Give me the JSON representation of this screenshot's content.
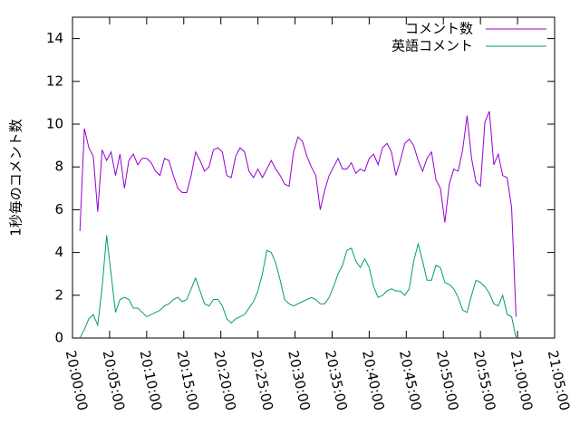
{
  "chart_data": {
    "type": "line",
    "ylabel": "1秒毎のコメント数",
    "xlim": [
      "20:00:00",
      "21:05:00"
    ],
    "xticks": [
      "20:00:00",
      "20:05:00",
      "20:10:00",
      "20:15:00",
      "20:20:00",
      "20:25:00",
      "20:30:00",
      "20:35:00",
      "20:40:00",
      "20:45:00",
      "20:50:00",
      "20:55:00",
      "21:00:00",
      "21:05:00"
    ],
    "ylim": [
      0,
      15
    ],
    "yticks": [
      0,
      2,
      4,
      6,
      8,
      10,
      12,
      14
    ],
    "grid": false,
    "legend": "top right",
    "x": [
      "20:01:00",
      "20:01:36",
      "20:02:12",
      "20:02:48",
      "20:03:24",
      "20:04:00",
      "20:04:36",
      "20:05:12",
      "20:05:48",
      "20:06:24",
      "20:07:00",
      "20:07:36",
      "20:08:12",
      "20:08:48",
      "20:09:24",
      "20:10:00",
      "20:10:36",
      "20:11:12",
      "20:11:48",
      "20:12:24",
      "20:13:00",
      "20:13:36",
      "20:14:12",
      "20:14:48",
      "20:15:24",
      "20:16:00",
      "20:16:36",
      "20:17:12",
      "20:17:48",
      "20:18:24",
      "20:19:00",
      "20:19:36",
      "20:20:12",
      "20:20:48",
      "20:21:24",
      "20:22:00",
      "20:22:36",
      "20:23:12",
      "20:23:48",
      "20:24:24",
      "20:25:00",
      "20:25:36",
      "20:26:12",
      "20:26:48",
      "20:27:24",
      "20:28:00",
      "20:28:36",
      "20:29:12",
      "20:29:48",
      "20:30:24",
      "20:31:00",
      "20:31:36",
      "20:32:12",
      "20:32:48",
      "20:33:24",
      "20:34:00",
      "20:34:36",
      "20:35:12",
      "20:35:48",
      "20:36:24",
      "20:37:00",
      "20:37:36",
      "20:38:12",
      "20:38:48",
      "20:39:24",
      "20:40:00",
      "20:40:36",
      "20:41:12",
      "20:41:48",
      "20:42:24",
      "20:43:00",
      "20:43:36",
      "20:44:12",
      "20:44:48",
      "20:45:24",
      "20:46:00",
      "20:46:36",
      "20:47:12",
      "20:47:48",
      "20:48:24",
      "20:49:00",
      "20:49:36",
      "20:50:12",
      "20:50:48",
      "20:51:24",
      "20:52:00",
      "20:52:36",
      "20:53:12",
      "20:53:48",
      "20:54:24",
      "20:55:00",
      "20:55:36",
      "20:56:12",
      "20:56:48",
      "20:57:24",
      "20:58:00",
      "20:58:36",
      "20:59:12",
      "20:59:48"
    ],
    "series": [
      {
        "name": "コメント数",
        "color": "#9400d3",
        "values": [
          5.0,
          9.8,
          8.9,
          8.5,
          5.9,
          8.8,
          8.3,
          8.7,
          7.6,
          8.6,
          7.0,
          8.3,
          8.6,
          8.1,
          8.4,
          8.4,
          8.2,
          7.8,
          7.6,
          8.4,
          8.3,
          7.6,
          7.0,
          6.8,
          6.8,
          7.6,
          8.7,
          8.3,
          7.8,
          8.0,
          8.8,
          8.9,
          8.7,
          7.6,
          7.5,
          8.5,
          8.9,
          8.7,
          7.8,
          7.5,
          7.9,
          7.5,
          7.9,
          8.3,
          7.9,
          7.6,
          7.2,
          7.1,
          8.7,
          9.4,
          9.2,
          8.5,
          8.0,
          7.6,
          6.0,
          6.9,
          7.6,
          8.0,
          8.4,
          7.9,
          7.9,
          8.2,
          7.7,
          7.9,
          7.8,
          8.4,
          8.6,
          8.1,
          8.9,
          9.1,
          8.7,
          7.6,
          8.3,
          9.1,
          9.3,
          9.0,
          8.3,
          7.8,
          8.4,
          8.7,
          7.4,
          7.0,
          5.4,
          7.2,
          7.9,
          7.8,
          8.8,
          10.4,
          8.4,
          7.3,
          7.1,
          10.1,
          10.6,
          8.1,
          8.6,
          7.6,
          7.5,
          6.1,
          1.0
        ]
      },
      {
        "name": "英語コメント",
        "color": "#009e73",
        "values": [
          0.0,
          0.4,
          0.9,
          1.1,
          0.6,
          2.4,
          4.8,
          3.0,
          1.2,
          1.8,
          1.9,
          1.8,
          1.4,
          1.4,
          1.2,
          1.0,
          1.1,
          1.2,
          1.3,
          1.5,
          1.6,
          1.8,
          1.9,
          1.7,
          1.8,
          2.3,
          2.8,
          2.2,
          1.6,
          1.5,
          1.8,
          1.8,
          1.5,
          0.9,
          0.7,
          0.9,
          1.0,
          1.1,
          1.4,
          1.7,
          2.2,
          3.0,
          4.1,
          4.0,
          3.5,
          2.7,
          1.8,
          1.6,
          1.5,
          1.6,
          1.7,
          1.8,
          1.9,
          1.8,
          1.6,
          1.6,
          1.9,
          2.4,
          3.0,
          3.4,
          4.1,
          4.2,
          3.6,
          3.3,
          3.7,
          3.3,
          2.4,
          1.9,
          2.0,
          2.2,
          2.3,
          2.2,
          2.2,
          2.0,
          2.3,
          3.6,
          4.4,
          3.6,
          2.7,
          2.7,
          3.4,
          3.3,
          2.6,
          2.5,
          2.3,
          1.9,
          1.3,
          1.2,
          2.0,
          2.7,
          2.6,
          2.4,
          2.1,
          1.6,
          1.5,
          2.0,
          1.1,
          1.0,
          0.0
        ]
      }
    ]
  }
}
